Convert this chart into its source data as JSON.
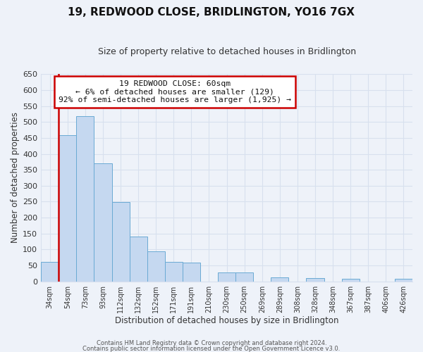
{
  "title": "19, REDWOOD CLOSE, BRIDLINGTON, YO16 7GX",
  "subtitle": "Size of property relative to detached houses in Bridlington",
  "xlabel": "Distribution of detached houses by size in Bridlington",
  "ylabel": "Number of detached properties",
  "bar_labels": [
    "34sqm",
    "54sqm",
    "73sqm",
    "93sqm",
    "112sqm",
    "132sqm",
    "152sqm",
    "171sqm",
    "191sqm",
    "210sqm",
    "230sqm",
    "250sqm",
    "269sqm",
    "289sqm",
    "308sqm",
    "328sqm",
    "348sqm",
    "367sqm",
    "387sqm",
    "406sqm",
    "426sqm"
  ],
  "bar_values": [
    62,
    458,
    519,
    370,
    248,
    140,
    95,
    62,
    58,
    0,
    27,
    27,
    0,
    13,
    0,
    10,
    0,
    8,
    0,
    0,
    8
  ],
  "bar_color": "#c5d8f0",
  "bar_edge_color": "#6aaad4",
  "ylim": [
    0,
    650
  ],
  "yticks": [
    0,
    50,
    100,
    150,
    200,
    250,
    300,
    350,
    400,
    450,
    500,
    550,
    600,
    650
  ],
  "redline_x_label": "54sqm",
  "annotation_title": "19 REDWOOD CLOSE: 60sqm",
  "annotation_line1": "← 6% of detached houses are smaller (129)",
  "annotation_line2": "92% of semi-detached houses are larger (1,925) →",
  "annotation_box_facecolor": "#ffffff",
  "annotation_box_edgecolor": "#cc0000",
  "redline_color": "#cc0000",
  "background_color": "#eef2f9",
  "grid_color": "#d8e0ee",
  "title_color": "#111111",
  "subtitle_color": "#333333",
  "tick_color": "#333333",
  "footer_line1": "Contains HM Land Registry data © Crown copyright and database right 2024.",
  "footer_line2": "Contains public sector information licensed under the Open Government Licence v3.0."
}
